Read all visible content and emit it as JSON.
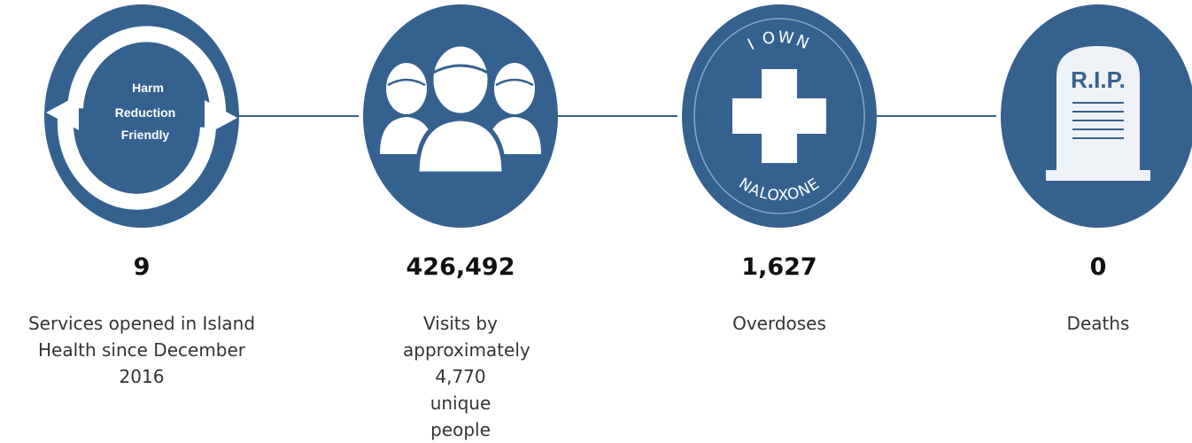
{
  "stats": [
    {
      "icon": "harm-reduction-friendly-icon",
      "icon_text": [
        "Harm",
        "Reduction",
        "Friendly"
      ],
      "value": "9",
      "label": "Services opened in Island Health since December 2016"
    },
    {
      "icon": "people-group-icon",
      "value": "426,492",
      "label": "Visits by approximately 4,770 unique people"
    },
    {
      "icon": "naloxone-cross-icon",
      "icon_text_top": "I OWN",
      "icon_text_bottom": "NALOXONE",
      "value": "1,627",
      "label": "Overdoses"
    },
    {
      "icon": "tombstone-icon",
      "icon_text": "R.I.P.",
      "value": "0",
      "label": "Deaths"
    }
  ],
  "colors": {
    "circle": "#35618f",
    "icon": "#ffffff",
    "text": "#111111"
  }
}
